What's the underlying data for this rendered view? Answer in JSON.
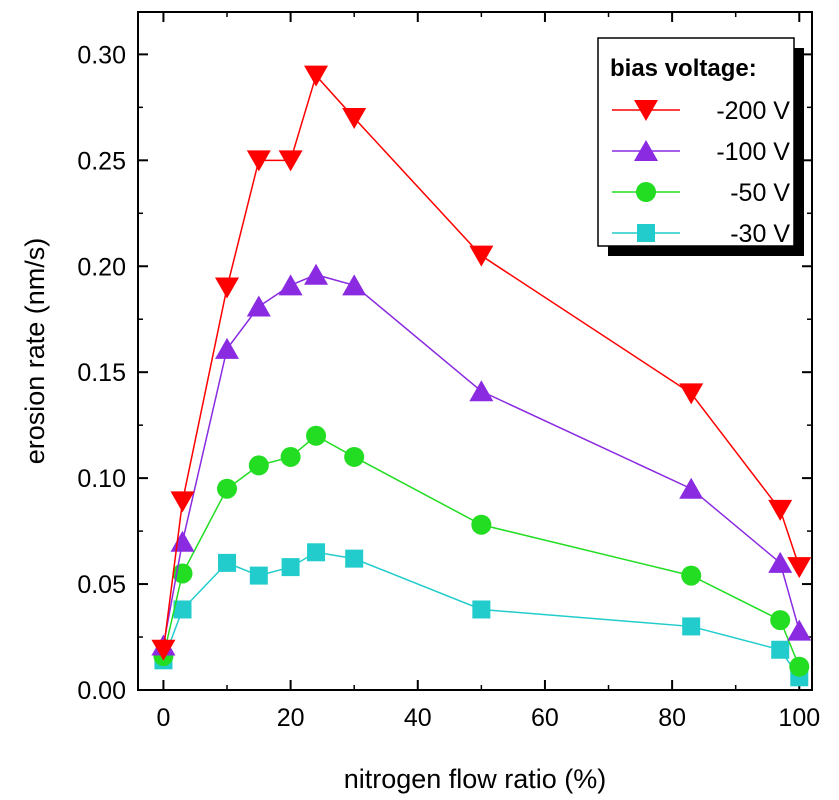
{
  "chart_data": {
    "type": "line",
    "title": "",
    "xlabel": "nitrogen flow ratio (%)",
    "ylabel": "erosion rate (nm/s)",
    "xlim": [
      -4,
      102
    ],
    "ylim": [
      0,
      0.32
    ],
    "x_ticks": [
      0,
      20,
      40,
      60,
      80,
      100
    ],
    "y_ticks": [
      0.0,
      0.05,
      0.1,
      0.15,
      0.2,
      0.25,
      0.3
    ],
    "x_tick_labels": [
      "0",
      "20",
      "40",
      "60",
      "80",
      "100"
    ],
    "y_tick_labels": [
      "0.00",
      "0.05",
      "0.10",
      "0.15",
      "0.20",
      "0.25",
      "0.30"
    ],
    "grid": false,
    "legend": {
      "title": "bias voltage:",
      "placement": "top-right"
    },
    "series": [
      {
        "name": "-200 V",
        "color": "#ff0000",
        "marker": "triangle-down",
        "x": [
          0,
          3,
          10,
          15,
          20,
          24,
          30,
          50,
          83,
          97,
          100
        ],
        "y": [
          0.019,
          0.089,
          0.19,
          0.25,
          0.25,
          0.29,
          0.27,
          0.205,
          0.14,
          0.085,
          0.058
        ]
      },
      {
        "name": "-100 V",
        "color": "#8a2be2",
        "marker": "triangle-up",
        "x": [
          0,
          3,
          10,
          15,
          20,
          24,
          30,
          50,
          83,
          97,
          100
        ],
        "y": [
          0.021,
          0.07,
          0.161,
          0.181,
          0.191,
          0.196,
          0.191,
          0.141,
          0.095,
          0.06,
          0.028
        ]
      },
      {
        "name": "-50 V",
        "color": "#22dd22",
        "marker": "circle",
        "x": [
          0,
          3,
          10,
          15,
          20,
          24,
          30,
          50,
          83,
          97,
          100
        ],
        "y": [
          0.016,
          0.055,
          0.095,
          0.106,
          0.11,
          0.12,
          0.11,
          0.078,
          0.054,
          0.033,
          0.011
        ]
      },
      {
        "name": "-30 V",
        "color": "#22cccc",
        "marker": "square",
        "x": [
          0,
          3,
          10,
          15,
          20,
          24,
          30,
          50,
          83,
          97,
          100
        ],
        "y": [
          0.014,
          0.038,
          0.06,
          0.054,
          0.058,
          0.065,
          0.062,
          0.038,
          0.03,
          0.019,
          0.006
        ]
      }
    ]
  }
}
